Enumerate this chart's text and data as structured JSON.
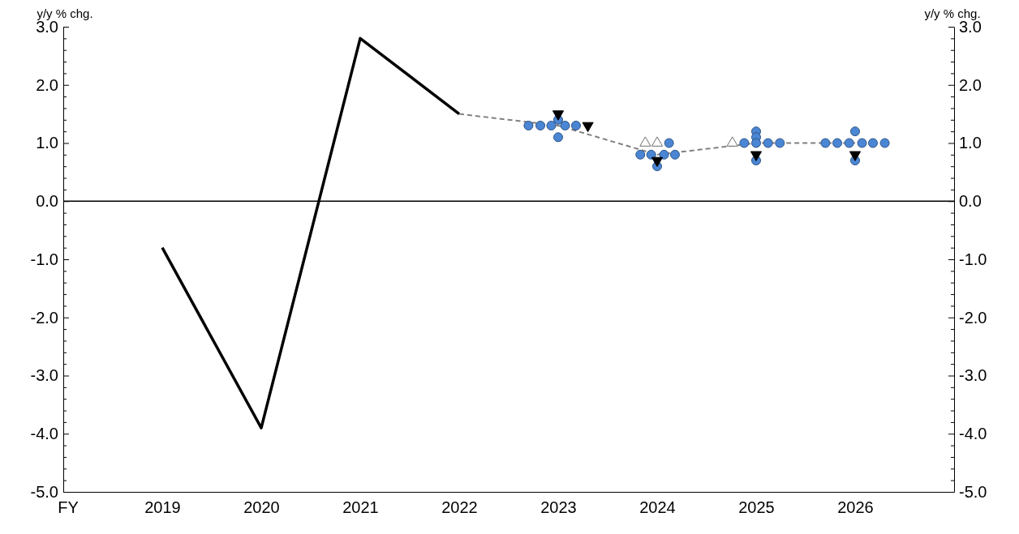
{
  "chart_data": {
    "type": "line",
    "ylabel": "y/y % chg.",
    "y2label": "y/y % chg.",
    "xlim": [
      2018,
      2027
    ],
    "xlabel": "FY",
    "xticks": [
      2019,
      2020,
      2021,
      2022,
      2023,
      2024,
      2025,
      2026
    ],
    "ylim": [
      -5,
      3
    ],
    "y2lim": [
      -5,
      3
    ],
    "yticks": [
      {
        "value": -5,
        "label": "-5.0"
      },
      {
        "value": -4,
        "label": "-4.0"
      },
      {
        "value": -3,
        "label": "-3.0"
      },
      {
        "value": -2,
        "label": "-2.0"
      },
      {
        "value": -1,
        "label": "-1.0"
      },
      {
        "value": 0,
        "label": "0.0"
      },
      {
        "value": 1,
        "label": "1.0"
      },
      {
        "value": 2,
        "label": "2.0"
      },
      {
        "value": 3,
        "label": "3.0"
      },
      {
        "value": -4.8,
        "label": null
      },
      {
        "value": -4.6,
        "label": null
      },
      {
        "value": -4.4,
        "label": null
      },
      {
        "value": -4.2,
        "label": null
      },
      {
        "value": -3.8,
        "label": null
      },
      {
        "value": -3.6,
        "label": null
      },
      {
        "value": -3.4,
        "label": null
      },
      {
        "value": -3.2,
        "label": null
      },
      {
        "value": -2.8,
        "label": null
      },
      {
        "value": -2.6,
        "label": null
      },
      {
        "value": -2.4,
        "label": null
      },
      {
        "value": -2.2,
        "label": null
      },
      {
        "value": -1.8,
        "label": null
      },
      {
        "value": -1.6,
        "label": null
      },
      {
        "value": -1.4,
        "label": null
      },
      {
        "value": -1.2,
        "label": null
      },
      {
        "value": -0.8,
        "label": null
      },
      {
        "value": -0.6,
        "label": null
      },
      {
        "value": -0.4,
        "label": null
      },
      {
        "value": -0.2,
        "label": null
      },
      {
        "value": 0.2,
        "label": null
      },
      {
        "value": 0.4,
        "label": null
      },
      {
        "value": 0.6,
        "label": null
      },
      {
        "value": 0.8,
        "label": null
      },
      {
        "value": 1.2,
        "label": null
      },
      {
        "value": 1.4,
        "label": null
      },
      {
        "value": 1.6,
        "label": null
      },
      {
        "value": 1.8,
        "label": null
      },
      {
        "value": 2.2,
        "label": null
      },
      {
        "value": 2.4,
        "label": null
      },
      {
        "value": 2.6,
        "label": null
      },
      {
        "value": 2.8,
        "label": null
      }
    ],
    "y2ticks": [
      {
        "value": -5,
        "label": "-5.0"
      },
      {
        "value": -4,
        "label": "-4.0"
      },
      {
        "value": -3,
        "label": "-3.0"
      },
      {
        "value": -2,
        "label": "-2.0"
      },
      {
        "value": -1,
        "label": "-1.0"
      },
      {
        "value": 0,
        "label": "0.0"
      },
      {
        "value": 1,
        "label": "1.0"
      },
      {
        "value": 2,
        "label": "2.0"
      },
      {
        "value": 3,
        "label": "3.0"
      },
      {
        "value": -4.8,
        "label": null
      },
      {
        "value": -4.6,
        "label": null
      },
      {
        "value": -4.4,
        "label": null
      },
      {
        "value": -4.2,
        "label": null
      },
      {
        "value": -3.8,
        "label": null
      },
      {
        "value": -3.6,
        "label": null
      },
      {
        "value": -3.4,
        "label": null
      },
      {
        "value": -3.2,
        "label": null
      },
      {
        "value": -2.8,
        "label": null
      },
      {
        "value": -2.6,
        "label": null
      },
      {
        "value": -2.4,
        "label": null
      },
      {
        "value": -2.2,
        "label": null
      },
      {
        "value": -1.8,
        "label": null
      },
      {
        "value": -1.6,
        "label": null
      },
      {
        "value": -1.4,
        "label": null
      },
      {
        "value": -1.2,
        "label": null
      },
      {
        "value": -0.8,
        "label": null
      },
      {
        "value": -0.6,
        "label": null
      },
      {
        "value": -0.4,
        "label": null
      },
      {
        "value": -0.2,
        "label": null
      },
      {
        "value": 0.2,
        "label": null
      },
      {
        "value": 0.4,
        "label": null
      },
      {
        "value": 0.6,
        "label": null
      },
      {
        "value": 0.8,
        "label": null
      },
      {
        "value": 1.2,
        "label": null
      },
      {
        "value": 1.4,
        "label": null
      },
      {
        "value": 1.6,
        "label": null
      },
      {
        "value": 1.8,
        "label": null
      },
      {
        "value": 2.2,
        "label": null
      },
      {
        "value": 2.4,
        "label": null
      },
      {
        "value": 2.6,
        "label": null
      },
      {
        "value": 2.8,
        "label": null
      }
    ],
    "grid": false,
    "ref_lines": [
      {
        "axis": "y",
        "value": 0,
        "color": "#000000",
        "line_style": "solid"
      }
    ],
    "series": [
      {
        "type": "line",
        "color": "#000000",
        "line_style": "solid",
        "marker": "none",
        "x": [
          2019,
          2020,
          2021,
          2022
        ],
        "values": [
          -0.8,
          -3.9,
          2.8,
          1.5
        ]
      },
      {
        "type": "line",
        "color": "#808080",
        "line_style": "dashed",
        "marker": "none",
        "x": [
          2022,
          2023,
          2024,
          2025,
          2026
        ],
        "values": [
          1.5,
          1.3,
          0.8,
          1.0,
          1.0
        ]
      },
      {
        "type": "scatter",
        "color": "#4a86d4",
        "marker": "circle",
        "x": [
          2022.7,
          2022.82,
          2022.93,
          2023.0,
          2023.07,
          2023.18,
          2023.0,
          2023.83,
          2023.94,
          2024.07,
          2024.18,
          2024.12,
          2024.0,
          2024.88,
          2025.0,
          2025.0,
          2025.0,
          2025.0,
          2025.12,
          2025.24,
          2025.7,
          2025.82,
          2025.94,
          2026.07,
          2026.18,
          2026.3,
          2026.0,
          2026.0
        ],
        "values": [
          1.3,
          1.3,
          1.3,
          1.4,
          1.3,
          1.3,
          1.1,
          0.8,
          0.8,
          0.8,
          0.8,
          1.0,
          0.6,
          1.0,
          1.2,
          1.1,
          1.0,
          0.7,
          1.0,
          1.0,
          1.0,
          1.0,
          1.0,
          1.0,
          1.0,
          1.0,
          1.2,
          0.7
        ]
      },
      {
        "type": "scatter",
        "color": "#ffffff",
        "marker": "triangle",
        "x": [
          2023.88,
          2024.0,
          2024.76
        ],
        "values": [
          1.0,
          1.0,
          1.0
        ]
      },
      {
        "type": "scatter",
        "color": "#000000",
        "marker": "triangle-down",
        "x": [
          2023.0,
          2023.3,
          2024.0,
          2025.0,
          2026.0
        ],
        "values": [
          1.5,
          1.3,
          0.7,
          0.8,
          0.8
        ]
      }
    ]
  }
}
